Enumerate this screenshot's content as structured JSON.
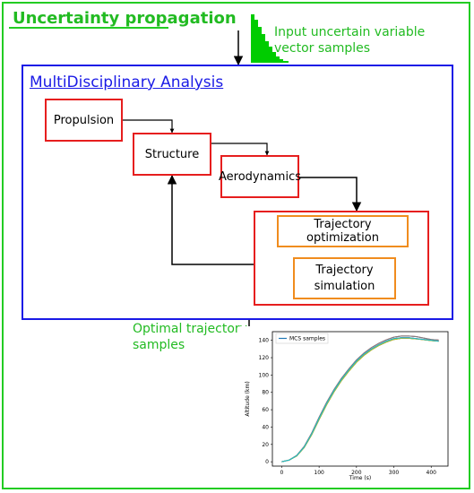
{
  "title": "Uncertainty propagation",
  "input_label": "Input uncertain variable vector samples",
  "mda": {
    "title": "MultiDisciplinary Analysis",
    "propulsion": "Propulsion",
    "structure": "Structure",
    "aerodynamics": "Aerodynamics",
    "traj_opt": "Trajectory optimization",
    "traj_sim": "Trajectory simulation"
  },
  "output_label": "Optimal trajectory samples",
  "colors": {
    "outer": "#22cc22",
    "mda": "#1a1ae6",
    "discipline": "#e61e1e",
    "trajectory": "#f08c1e"
  },
  "chart_data": {
    "type": "line",
    "xlabel": "Time (s)",
    "ylabel": "Altitude (km)",
    "legend": "MCS samples",
    "legend_position": "top-left",
    "xlim": [
      -25,
      445
    ],
    "ylim": [
      -5,
      150
    ],
    "xticks": [
      0,
      100,
      200,
      300,
      400
    ],
    "yticks": [
      0,
      20,
      40,
      60,
      80,
      100,
      120,
      140
    ],
    "series_colors": [
      "#1f77b4",
      "#ff7f0e",
      "#2ca02c",
      "#d62728",
      "#9467bd",
      "#8c564b",
      "#e377c2",
      "#7f7f7f",
      "#bcbd22",
      "#17becf"
    ],
    "series": [
      {
        "x": [
          0,
          20,
          40,
          60,
          80,
          100,
          120,
          140,
          160,
          180,
          200,
          220,
          240,
          260,
          280,
          300,
          320,
          340,
          360,
          380,
          400,
          420
        ],
        "values": [
          0,
          2,
          7,
          17,
          32,
          50,
          67,
          82,
          95,
          106,
          116,
          124,
          130,
          135,
          139,
          142,
          143,
          143,
          142,
          141,
          140,
          139
        ]
      },
      {
        "x": [
          0,
          20,
          40,
          60,
          80,
          100,
          120,
          140,
          160,
          180,
          200,
          220,
          240,
          260,
          280,
          300,
          320,
          340,
          360,
          380,
          400,
          420
        ],
        "values": [
          0,
          2,
          8,
          19,
          35,
          54,
          71,
          86,
          99,
          110,
          120,
          128,
          134,
          139,
          143,
          146,
          147,
          147,
          146,
          144,
          142,
          141
        ]
      },
      {
        "x": [
          0,
          20,
          40,
          60,
          80,
          100,
          120,
          140,
          160,
          180,
          200,
          220,
          240,
          260,
          280,
          300,
          320,
          340,
          360,
          380,
          400,
          420
        ],
        "values": [
          0,
          2,
          6,
          15,
          29,
          46,
          63,
          78,
          91,
          102,
          112,
          120,
          127,
          132,
          136,
          139,
          141,
          141,
          141,
          140,
          139,
          139
        ]
      }
    ]
  }
}
